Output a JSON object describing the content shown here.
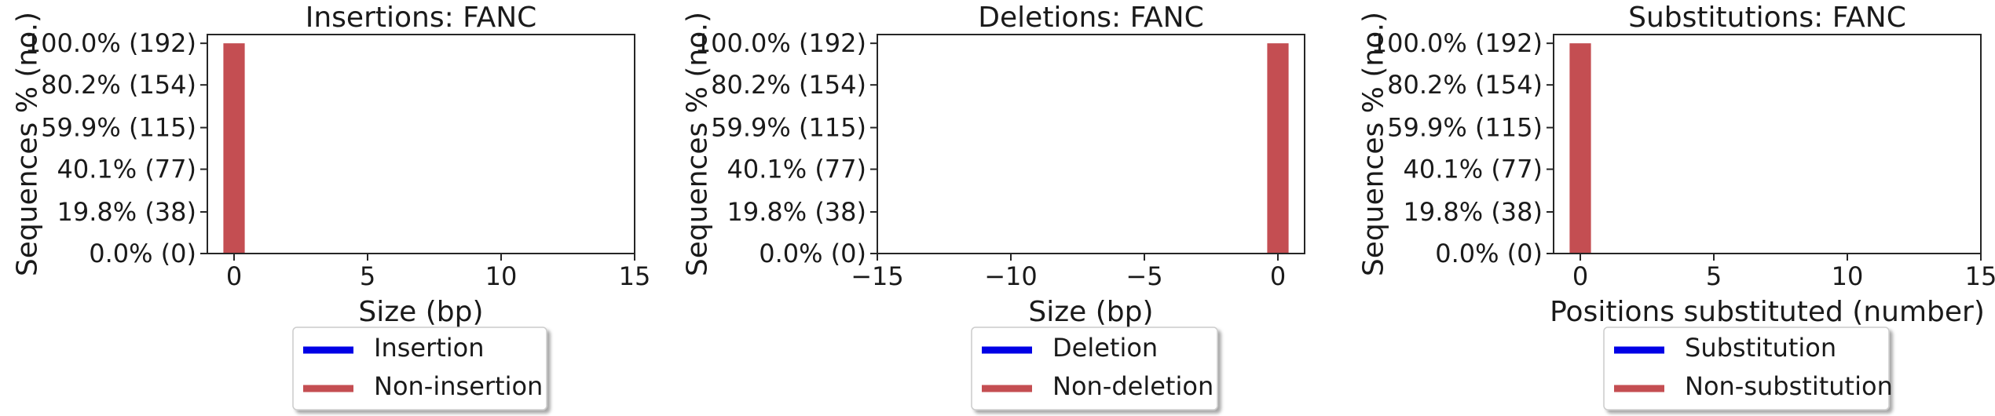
{
  "chart_data": [
    {
      "type": "bar",
      "title": "Insertions: FANC",
      "xlabel": "Size (bp)",
      "ylabel": "Sequences % (no.)",
      "xlim": [
        -1,
        15
      ],
      "ylim": [
        0,
        200
      ],
      "xticks": [
        0,
        5,
        10,
        15
      ],
      "xtick_labels": [
        "0",
        "5",
        "10",
        "15"
      ],
      "yticks": [
        0,
        38,
        77,
        115,
        154,
        192
      ],
      "ytick_labels": [
        "0.0% (0)",
        "19.8% (38)",
        "40.1% (77)",
        "59.9% (115)",
        "80.2% (154)",
        "100.0% (192)"
      ],
      "bars": [
        {
          "x": 0,
          "value": 192,
          "color": "#c44e52"
        }
      ],
      "legend": {
        "placement": "below",
        "entries": [
          {
            "label": "Insertion",
            "color": "#0000e6"
          },
          {
            "label": "Non-insertion",
            "color": "#c44e52"
          }
        ]
      }
    },
    {
      "type": "bar",
      "title": "Deletions: FANC",
      "xlabel": "Size (bp)",
      "ylabel": "Sequences % (no.)",
      "xlim": [
        -15,
        1
      ],
      "ylim": [
        0,
        200
      ],
      "xticks": [
        -15,
        -10,
        -5,
        0
      ],
      "xtick_labels": [
        "−15",
        "−10",
        "−5",
        "0"
      ],
      "yticks": [
        0,
        38,
        77,
        115,
        154,
        192
      ],
      "ytick_labels": [
        "0.0% (0)",
        "19.8% (38)",
        "40.1% (77)",
        "59.9% (115)",
        "80.2% (154)",
        "100.0% (192)"
      ],
      "bars": [
        {
          "x": 0,
          "value": 192,
          "color": "#c44e52"
        }
      ],
      "legend": {
        "placement": "below",
        "entries": [
          {
            "label": "Deletion",
            "color": "#0000e6"
          },
          {
            "label": "Non-deletion",
            "color": "#c44e52"
          }
        ]
      }
    },
    {
      "type": "bar",
      "title": "Substitutions: FANC",
      "xlabel": "Positions substituted (number)",
      "ylabel": "Sequences % (no.)",
      "xlim": [
        -1,
        15
      ],
      "ylim": [
        0,
        200
      ],
      "xticks": [
        0,
        5,
        10,
        15
      ],
      "xtick_labels": [
        "0",
        "5",
        "10",
        "15"
      ],
      "yticks": [
        0,
        38,
        77,
        115,
        154,
        192
      ],
      "ytick_labels": [
        "0.0% (0)",
        "19.8% (38)",
        "40.1% (77)",
        "59.9% (115)",
        "80.2% (154)",
        "100.0% (192)"
      ],
      "bars": [
        {
          "x": 0,
          "value": 192,
          "color": "#c44e52"
        }
      ],
      "legend": {
        "placement": "below",
        "entries": [
          {
            "label": "Substitution",
            "color": "#0000e6"
          },
          {
            "label": "Non-substitution",
            "color": "#c44e52"
          }
        ]
      }
    }
  ]
}
